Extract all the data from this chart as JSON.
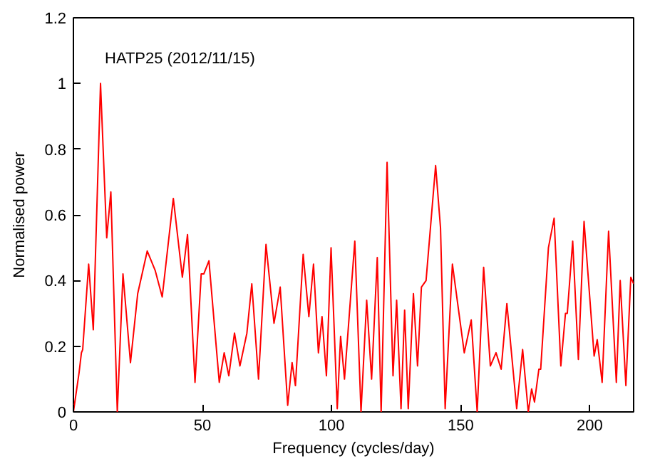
{
  "chart_data": {
    "type": "line",
    "title": "HATP25 (2012/11/15)",
    "xlabel": "Frequency (cycles/day)",
    "ylabel": "Normalised power",
    "xlim": [
      0,
      217
    ],
    "ylim": [
      0,
      1.2
    ],
    "xticks": [
      0,
      50,
      100,
      150,
      200
    ],
    "yticks": [
      0,
      0.2,
      0.4,
      0.6,
      0.8,
      1,
      1.2
    ],
    "grid": false,
    "marker": "none",
    "line_style": "solid",
    "series": [
      {
        "color": "#ff0000",
        "x": [
          0,
          2.2,
          3.1,
          3.6,
          5.9,
          7.7,
          10.5,
          12.9,
          14.5,
          17,
          19.2,
          22.1,
          24.9,
          28.6,
          31.7,
          34.4,
          38.7,
          42.2,
          44.2,
          47.1,
          49.5,
          50.5,
          52.5,
          56.5,
          58.4,
          60.2,
          62.4,
          64.5,
          67.2,
          69.1,
          71.7,
          74.6,
          77.7,
          80.1,
          83,
          84.7,
          86,
          89,
          91.2,
          93,
          94.9,
          96.3,
          98,
          99.8,
          102.2,
          103.5,
          105,
          109,
          111.4,
          113.6,
          115.5,
          117.7,
          119.2,
          121.5,
          123.8,
          125.2,
          126.9,
          128.3,
          129.7,
          131.7,
          133.3,
          134.8,
          136.6,
          140.3,
          142.2,
          144,
          146.8,
          151.4,
          154.1,
          156.4,
          158.9,
          161.5,
          163.7,
          165.7,
          167.9,
          171.7,
          174,
          176.2,
          177.5,
          178.6,
          180.3,
          181,
          184,
          186.2,
          188.8,
          190.6,
          191.3,
          193.4,
          195.6,
          197.8,
          201.7,
          202.9,
          204.8,
          207.3,
          210.3,
          211.8,
          214,
          215.9,
          217
        ],
        "values": [
          0,
          0.12,
          0.18,
          0.19,
          0.45,
          0.25,
          1.0,
          0.53,
          0.67,
          0,
          0.42,
          0.15,
          0.36,
          0.49,
          0.43,
          0.35,
          0.65,
          0.41,
          0.54,
          0.09,
          0.42,
          0.42,
          0.46,
          0.09,
          0.18,
          0.11,
          0.24,
          0.14,
          0.24,
          0.39,
          0.1,
          0.51,
          0.27,
          0.38,
          0.02,
          0.15,
          0.08,
          0.48,
          0.29,
          0.45,
          0.18,
          0.29,
          0.11,
          0.5,
          0.01,
          0.23,
          0.1,
          0.52,
          0,
          0.34,
          0.1,
          0.47,
          0,
          0.76,
          0.11,
          0.34,
          0.01,
          0.31,
          0.01,
          0.36,
          0.14,
          0.38,
          0.4,
          0.75,
          0.56,
          0.01,
          0.45,
          0.18,
          0.28,
          0,
          0.44,
          0.14,
          0.18,
          0.13,
          0.33,
          0.01,
          0.19,
          0,
          0.07,
          0.03,
          0.13,
          0.13,
          0.5,
          0.59,
          0.14,
          0.3,
          0.3,
          0.52,
          0.16,
          0.58,
          0.17,
          0.22,
          0.09,
          0.55,
          0.09,
          0.4,
          0.08,
          0.41,
          0.39
        ]
      }
    ]
  }
}
